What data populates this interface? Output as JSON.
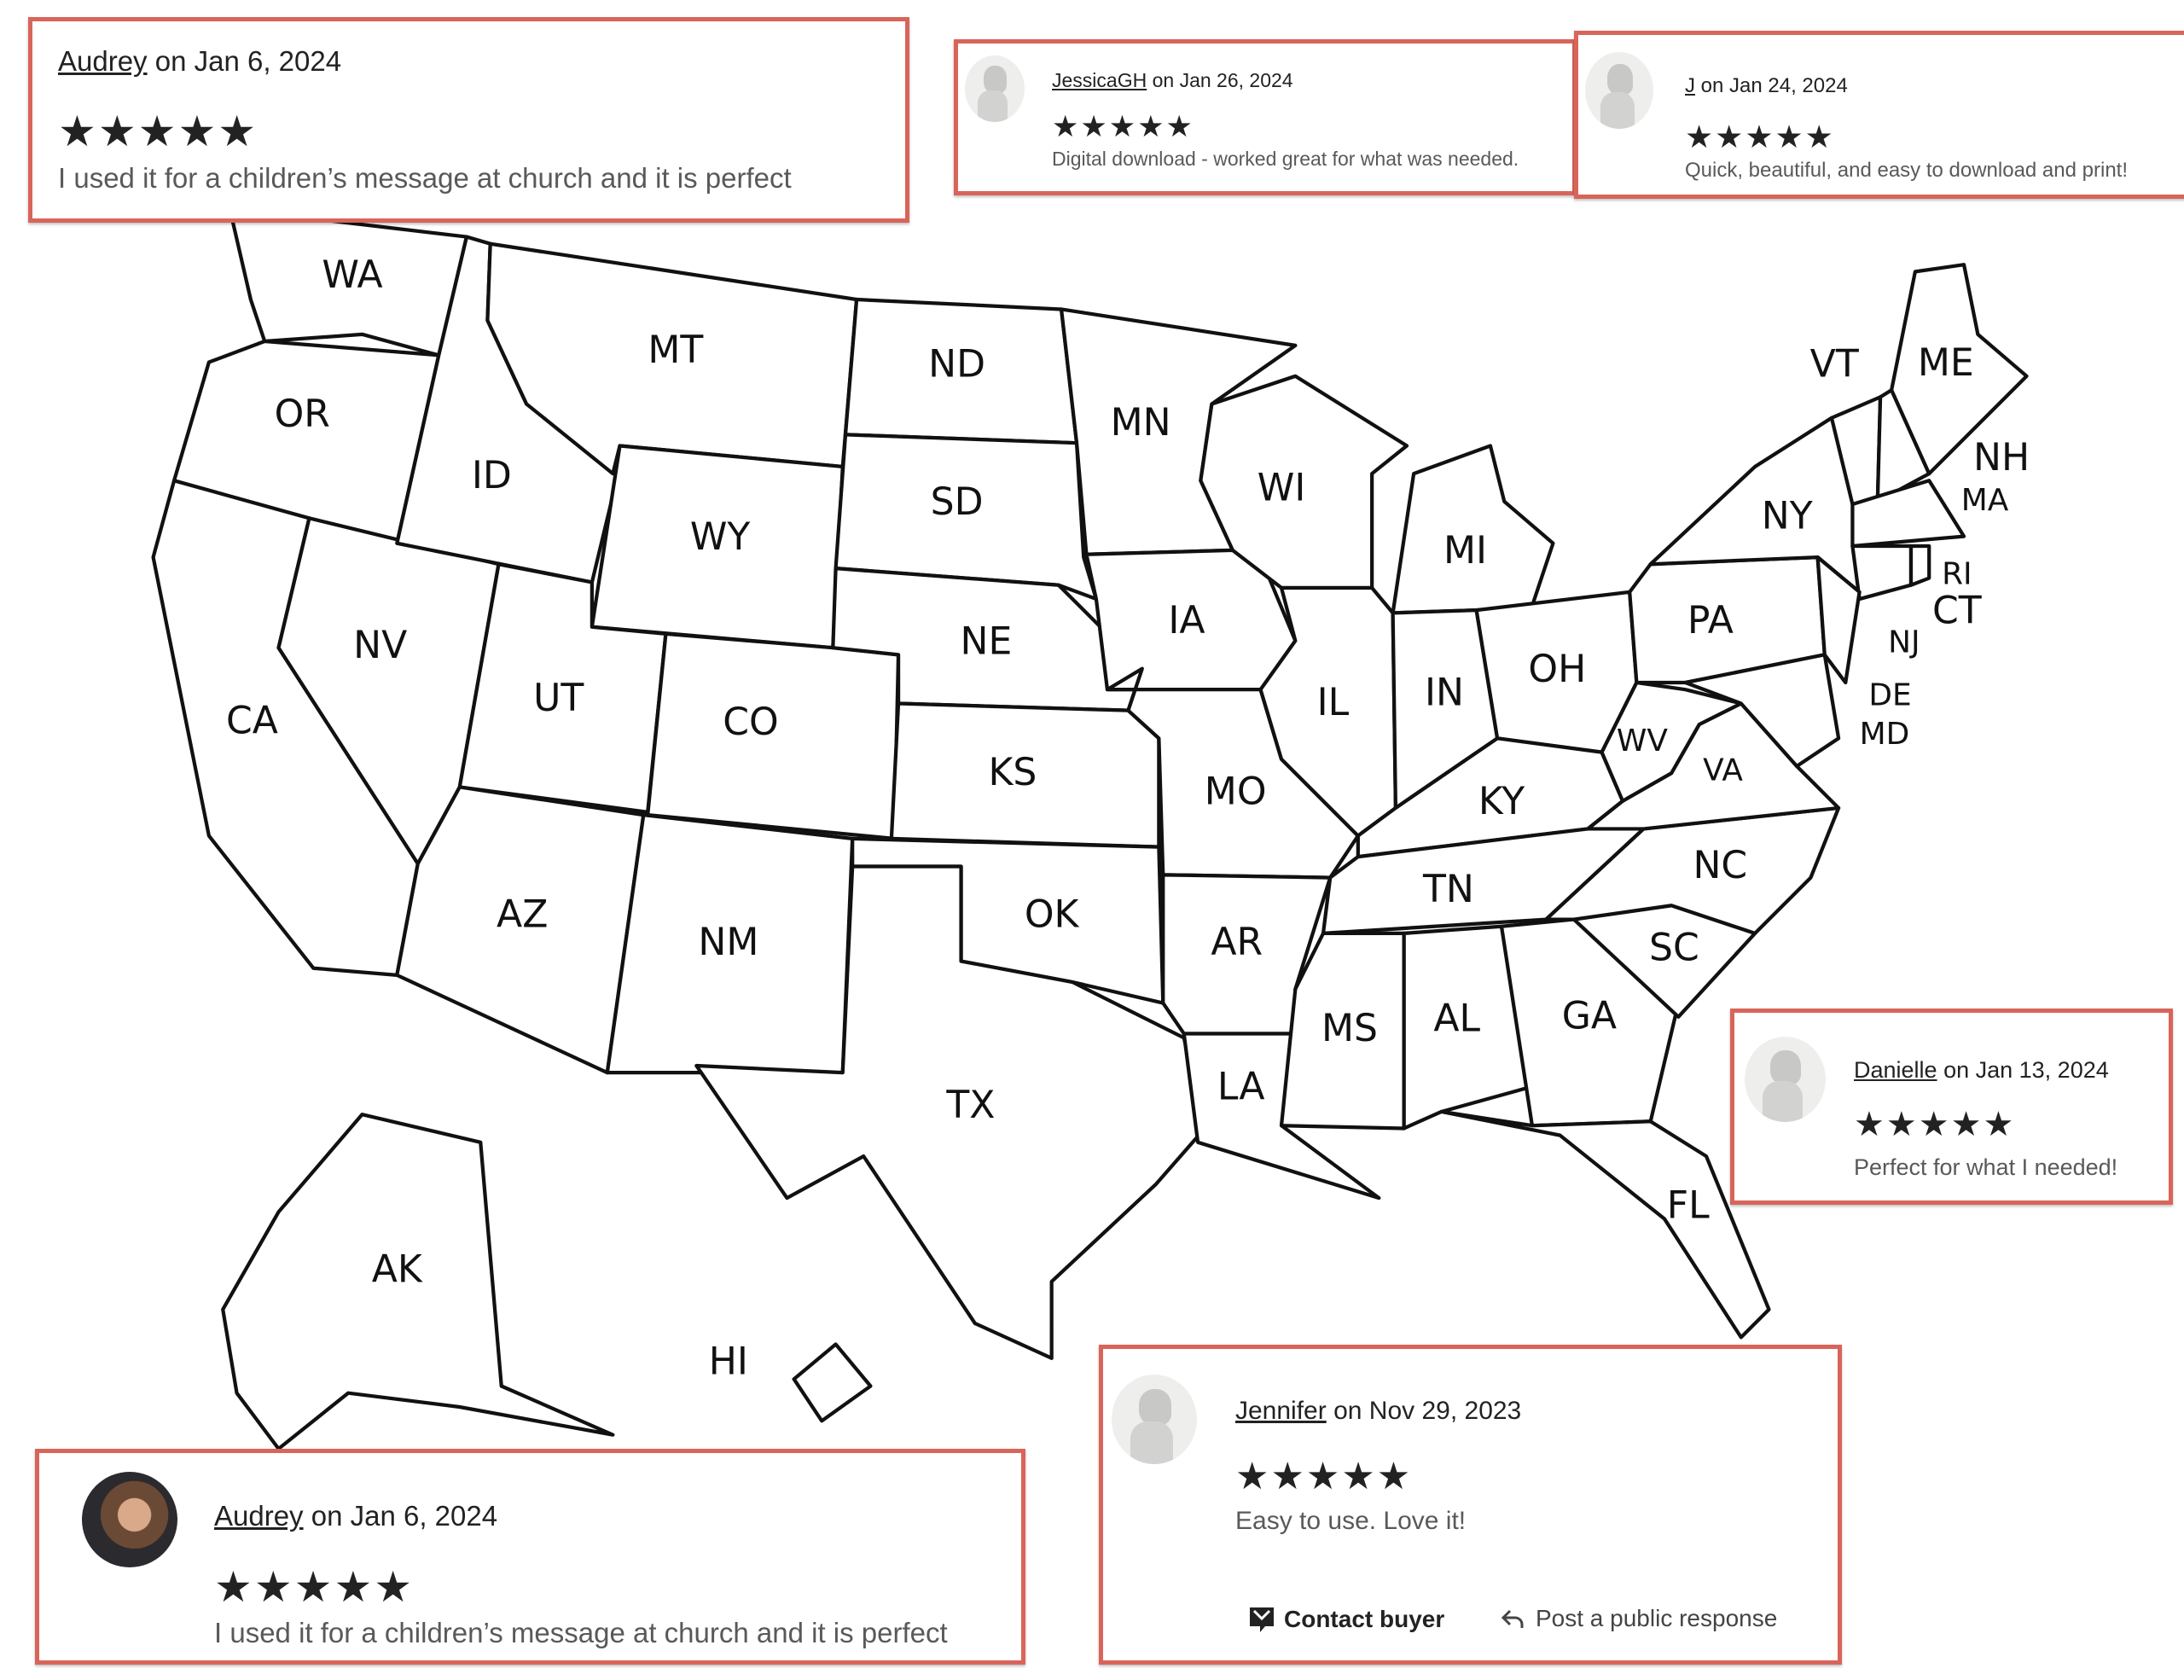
{
  "states": {
    "WA": "WA",
    "OR": "OR",
    "CA": "CA",
    "NV": "NV",
    "ID": "ID",
    "MT": "MT",
    "WY": "WY",
    "UT": "UT",
    "CO": "CO",
    "AZ": "AZ",
    "NM": "NM",
    "ND": "ND",
    "SD": "SD",
    "NE": "NE",
    "KS": "KS",
    "OK": "OK",
    "TX": "TX",
    "MN": "MN",
    "IA": "IA",
    "MO": "MO",
    "AR": "AR",
    "LA": "LA",
    "WI": "WI",
    "IL": "IL",
    "MI": "MI",
    "IN": "IN",
    "OH": "OH",
    "KY": "KY",
    "TN": "TN",
    "MS": "MS",
    "AL": "AL",
    "GA": "GA",
    "FL": "FL",
    "SC": "SC",
    "NC": "NC",
    "VA": "VA",
    "WV": "WV",
    "PA": "PA",
    "NY": "NY",
    "VT": "VT",
    "ME": "ME",
    "NH": "NH",
    "MA": "MA",
    "RI": "RI",
    "CT": "CT",
    "NJ": "NJ",
    "DE": "DE",
    "MD": "MD",
    "AK": "AK",
    "HI": "HI"
  },
  "reviews": [
    {
      "name": "Audrey",
      "date": "on Jan 6, 2024",
      "stars": "★★★★★",
      "rating": 5,
      "text": "I used it for a children’s message at church and it is perfect"
    },
    {
      "name": "JessicaGH",
      "date": "on Jan 26, 2024",
      "stars": "★★★★★",
      "rating": 5,
      "text": "Digital download - worked great for what was needed."
    },
    {
      "name": "J",
      "date": "on Jan 24, 2024",
      "stars": "★★★★★",
      "rating": 5,
      "text": "Quick, beautiful, and easy to download and print!"
    },
    {
      "name": "Danielle",
      "date": "on Jan 13, 2024",
      "stars": "★★★★★",
      "rating": 5,
      "text": "Perfect for what I needed!"
    },
    {
      "name": "Audrey",
      "date": "on Jan 6, 2024",
      "stars": "★★★★★",
      "rating": 5,
      "text": "I used it for a children’s message at church and it is perfect"
    },
    {
      "name": "Jennifer",
      "date": "on Nov 29, 2023",
      "stars": "★★★★★",
      "rating": 5,
      "text": "Easy to use. Love it!",
      "contact_label": "Contact buyer",
      "response_label": "Post a public response"
    }
  ],
  "colors": {
    "border": "#d9645a",
    "star": "#222222"
  },
  "icons": {
    "contact": "message-icon",
    "response": "reply-arrow-icon",
    "avatar": "default-user-avatar"
  }
}
